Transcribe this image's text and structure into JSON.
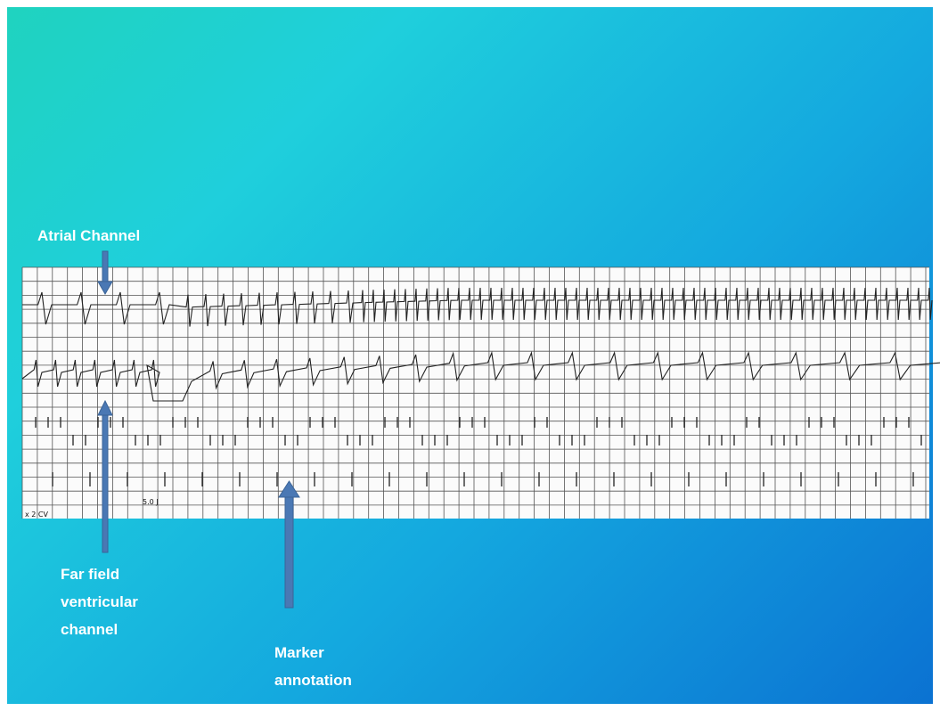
{
  "labels": {
    "atrial": [
      "Atrial Channel"
    ],
    "far_field": [
      "Far field",
      "ventricular",
      "channel"
    ],
    "marker": [
      "Marker",
      "annotation"
    ]
  },
  "strip": {
    "energy": "5.0 J",
    "cv": "x 2 CV"
  }
}
